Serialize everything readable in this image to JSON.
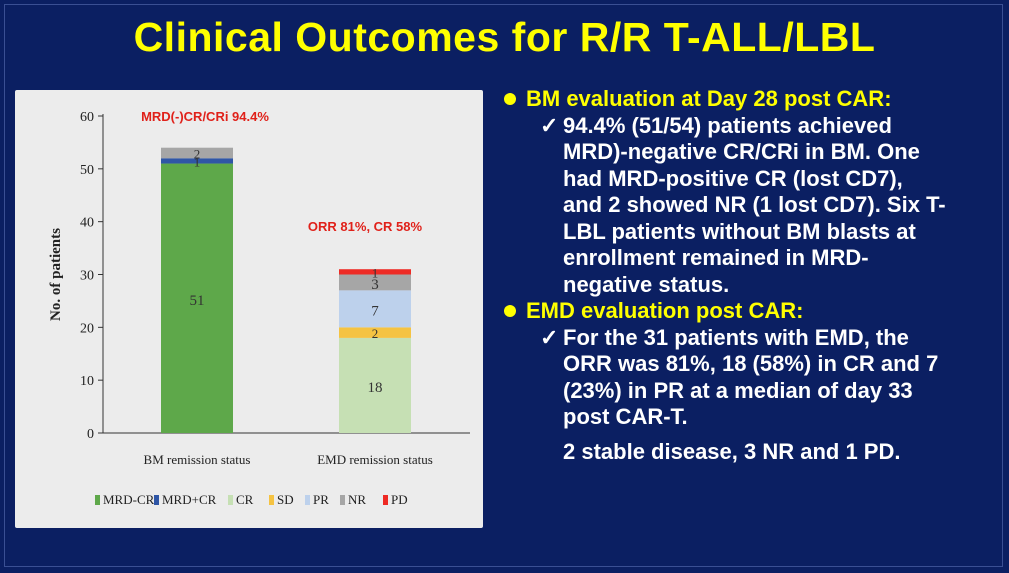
{
  "title": "Clinical Outcomes for R/R T-ALL/LBL",
  "chart_data": {
    "type": "bar",
    "stacked": true,
    "ylabel": "No. of patients",
    "ylim": [
      0,
      60
    ],
    "yticks": [
      0,
      10,
      20,
      30,
      40,
      50,
      60
    ],
    "categories": [
      "BM remission status",
      "EMD remission status"
    ],
    "series": [
      {
        "name": "MRD-CR",
        "color": "#5ea84a",
        "values": [
          51,
          0
        ]
      },
      {
        "name": "MRD+CR",
        "color": "#2f56a6",
        "values": [
          1,
          0
        ]
      },
      {
        "name": "CR",
        "color": "#c6e0b4",
        "values": [
          0,
          18
        ]
      },
      {
        "name": "SD",
        "color": "#f5c342",
        "values": [
          0,
          2
        ]
      },
      {
        "name": "PR",
        "color": "#bdd1ec",
        "values": [
          0,
          7
        ]
      },
      {
        "name": "NR",
        "color": "#a6a6a6",
        "values": [
          2,
          3
        ]
      },
      {
        "name": "PD",
        "color": "#ee2a24",
        "values": [
          0,
          1
        ]
      }
    ],
    "annotations": [
      "MRD(-)CR/CRi 94.4%",
      "ORR 81%, CR 58%"
    ],
    "legend_position": "bottom"
  },
  "text_panel": {
    "bullets": [
      {
        "heading": "BM evaluation at Day 28 post CAR:",
        "sub": [
          {
            "check": "✓",
            "lines": [
              "94.4% (51/54) patients achieved",
              "MRD)-negative CR/CRi in BM.  One",
              "had MRD-positive CR (lost CD7),",
              "and 2 showed NR (1 lost CD7). Six T-",
              "LBL patients without BM blasts at",
              "enrollment remained in MRD-",
              "negative status."
            ]
          }
        ]
      },
      {
        "heading": "EMD evaluation post CAR:",
        "sub": [
          {
            "check": "✓",
            "lines": [
              "For the 31 patients with EMD, the",
              "ORR was 81%, 18 (58%) in CR and 7",
              "(23%) in PR at a median of day 33",
              "post CAR-T."
            ]
          }
        ],
        "extra": "2 stable disease, 3  NR and 1 PD."
      }
    ]
  }
}
